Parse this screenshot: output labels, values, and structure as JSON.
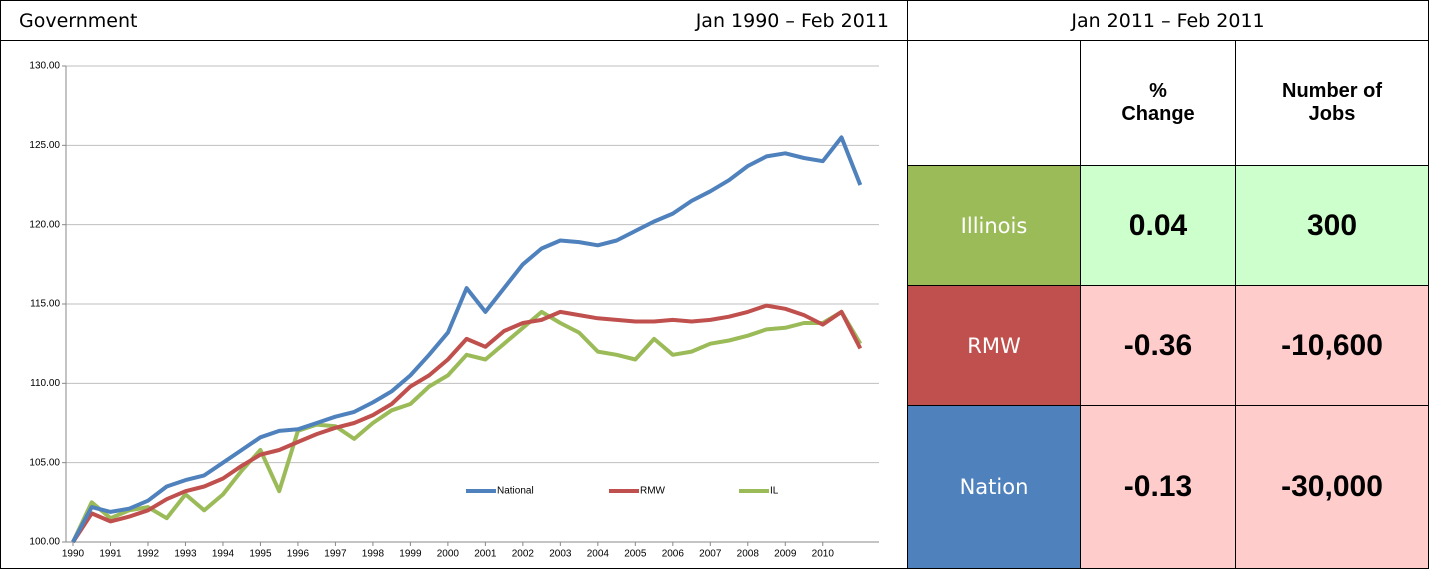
{
  "header": {
    "title": "Government",
    "period": "Jan 1990 – Feb 2011"
  },
  "chart_data": {
    "type": "line",
    "x": [
      1990,
      1990.5,
      1991,
      1991.5,
      1992,
      1992.5,
      1993,
      1993.5,
      1994,
      1994.5,
      1995,
      1995.5,
      1996,
      1996.5,
      1997,
      1997.5,
      1998,
      1998.5,
      1999,
      1999.5,
      2000,
      2000.5,
      2001,
      2001.5,
      2002,
      2002.5,
      2003,
      2003.5,
      2004,
      2004.5,
      2005,
      2005.5,
      2006,
      2006.5,
      2007,
      2007.5,
      2008,
      2008.5,
      2009,
      2009.5,
      2010,
      2010.5,
      2011
    ],
    "series": [
      {
        "name": "National",
        "color": "#4f81bd",
        "values": [
          100,
          102.2,
          101.9,
          102.1,
          102.6,
          103.5,
          103.9,
          104.2,
          105,
          105.8,
          106.6,
          107,
          107.1,
          107.5,
          107.9,
          108.2,
          108.8,
          109.5,
          110.5,
          111.8,
          113.2,
          116,
          114.5,
          116,
          117.5,
          118.5,
          119,
          118.9,
          118.7,
          119,
          119.6,
          120.2,
          120.7,
          121.5,
          122.1,
          122.8,
          123.7,
          124.3,
          124.5,
          124.2,
          124,
          125.5,
          122.5
        ]
      },
      {
        "name": "RMW",
        "color": "#c0504d",
        "values": [
          100,
          101.8,
          101.3,
          101.6,
          102,
          102.7,
          103.2,
          103.5,
          104,
          104.8,
          105.5,
          105.8,
          106.3,
          106.8,
          107.2,
          107.5,
          108,
          108.7,
          109.8,
          110.5,
          111.5,
          112.8,
          112.3,
          113.3,
          113.8,
          114,
          114.5,
          114.3,
          114.1,
          114,
          113.9,
          113.9,
          114,
          113.9,
          114,
          114.2,
          114.5,
          114.9,
          114.7,
          114.3,
          113.7,
          114.5,
          112.2
        ]
      },
      {
        "name": "IL",
        "color": "#9bbb59",
        "values": [
          100,
          102.5,
          101.5,
          102,
          102.2,
          101.5,
          103,
          102,
          103,
          104.5,
          105.8,
          103.2,
          107,
          107.4,
          107.3,
          106.5,
          107.5,
          108.3,
          108.7,
          109.8,
          110.5,
          111.8,
          111.5,
          112.5,
          113.5,
          114.5,
          113.8,
          113.2,
          112,
          111.8,
          111.5,
          112.8,
          111.8,
          112,
          112.5,
          112.7,
          113,
          113.4,
          113.5,
          113.8,
          113.8,
          114.5,
          112.5
        ]
      }
    ],
    "xlim": [
      1990,
      2011.5
    ],
    "xticks": [
      1990,
      1991,
      1992,
      1993,
      1994,
      1995,
      1996,
      1997,
      1998,
      1999,
      2000,
      2001,
      2002,
      2003,
      2004,
      2005,
      2006,
      2007,
      2008,
      2009,
      2010
    ],
    "ylim": [
      100,
      130
    ],
    "yticks": [
      {
        "value": 100,
        "label": "100.00"
      },
      {
        "value": 105,
        "label": "105.00"
      },
      {
        "value": 110,
        "label": "110.00"
      },
      {
        "value": 115,
        "label": "115.00"
      },
      {
        "value": 120,
        "label": "120.00"
      },
      {
        "value": 125,
        "label": "125.00"
      },
      {
        "value": 130,
        "label": "130.00"
      }
    ],
    "grid": true,
    "legend": "bottom"
  },
  "table": {
    "period": "Jan 2011 – Feb 2011",
    "columns": [
      "% Change",
      "Number of Jobs"
    ],
    "rows": [
      {
        "label": "Illinois",
        "color": "#9bbb59",
        "fill": "#ccffcc",
        "cells": [
          "0.04",
          "300"
        ]
      },
      {
        "label": "RMW",
        "color": "#c0504d",
        "fill": "#ffcccc",
        "cells": [
          "-0.36",
          "-10,600"
        ]
      },
      {
        "label": "Nation",
        "color": "#4f81bd",
        "fill": "#ffcccc",
        "cells": [
          "-0.13",
          "-30,000"
        ]
      }
    ]
  }
}
